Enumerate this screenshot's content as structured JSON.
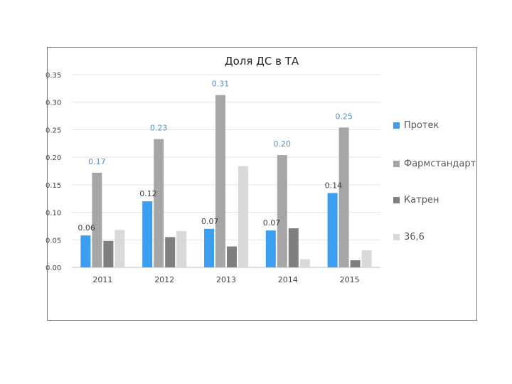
{
  "chart_data": {
    "type": "bar",
    "title": "Доля ДС в ТА",
    "categories": [
      "2011",
      "2012",
      "2013",
      "2014",
      "2015"
    ],
    "ylim": [
      0,
      0.35
    ],
    "yticks": [
      "0.00",
      "0.05",
      "0.10",
      "0.15",
      "0.20",
      "0.25",
      "0.30",
      "0.35"
    ],
    "grid": true,
    "legend_position": "right",
    "series": [
      {
        "name": "Протек",
        "color": "#3c9ef0",
        "values": [
          0.058,
          0.12,
          0.07,
          0.067,
          0.135
        ],
        "labels": [
          "0.06",
          "0.12",
          "0.07",
          "0.07",
          "0.14"
        ],
        "label_color": "#404040"
      },
      {
        "name": "Фармстандарт",
        "color": "#a6a6a6",
        "values": [
          0.172,
          0.233,
          0.313,
          0.204,
          0.254
        ],
        "labels": [
          "0.17",
          "0.23",
          "0.31",
          "0.20",
          "0.25"
        ],
        "label_color": "#5b8fc7"
      },
      {
        "name": "Катрен",
        "color": "#7f7f7f",
        "values": [
          0.048,
          0.055,
          0.038,
          0.071,
          0.013
        ],
        "labels": [],
        "label_color": "#404040"
      },
      {
        "name": "36,6",
        "color": "#d9d9d9",
        "values": [
          0.068,
          0.066,
          0.184,
          0.015,
          0.031
        ],
        "labels": [],
        "label_color": "#404040"
      }
    ]
  }
}
